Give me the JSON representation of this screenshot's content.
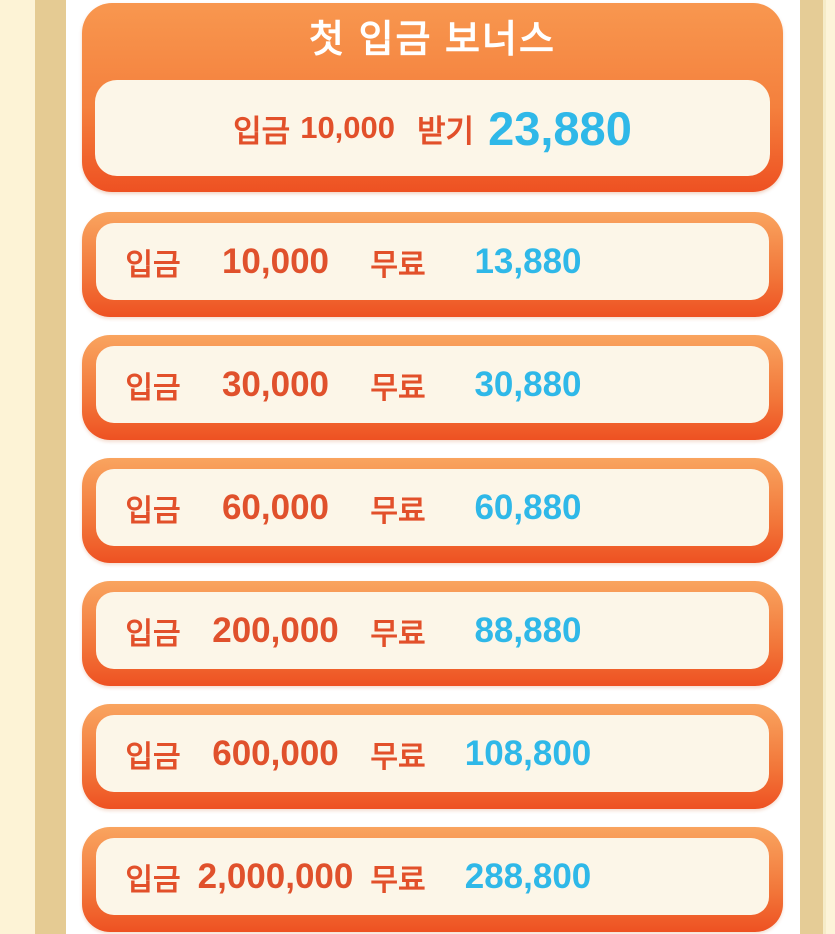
{
  "theme": {
    "accent_orange_dark": "#ee5122",
    "accent_orange_light": "#f9a45f",
    "text_orange": "#e2502a",
    "text_cyan": "#2fb8e8",
    "card_cream": "#fcf6e8",
    "side_cream": "#fdf3d6",
    "side_tan": "#e5cb93",
    "title_color": "#ffffff"
  },
  "header": {
    "title": "첫 입금 보너스",
    "featured": {
      "deposit_label": "입금",
      "deposit_amount": "10,000",
      "claim_label": "받기",
      "bonus_amount": "23,880"
    }
  },
  "tiers": [
    {
      "deposit_label": "입금",
      "deposit": "10,000",
      "free_label": "무료",
      "bonus": "13,880"
    },
    {
      "deposit_label": "입금",
      "deposit": "30,000",
      "free_label": "무료",
      "bonus": "30,880"
    },
    {
      "deposit_label": "입금",
      "deposit": "60,000",
      "free_label": "무료",
      "bonus": "60,880"
    },
    {
      "deposit_label": "입금",
      "deposit": "200,000",
      "free_label": "무료",
      "bonus": "88,880"
    },
    {
      "deposit_label": "입금",
      "deposit": "600,000",
      "free_label": "무료",
      "bonus": "108,800"
    },
    {
      "deposit_label": "입금",
      "deposit": "2,000,000",
      "free_label": "무료",
      "bonus": "288,800"
    }
  ]
}
